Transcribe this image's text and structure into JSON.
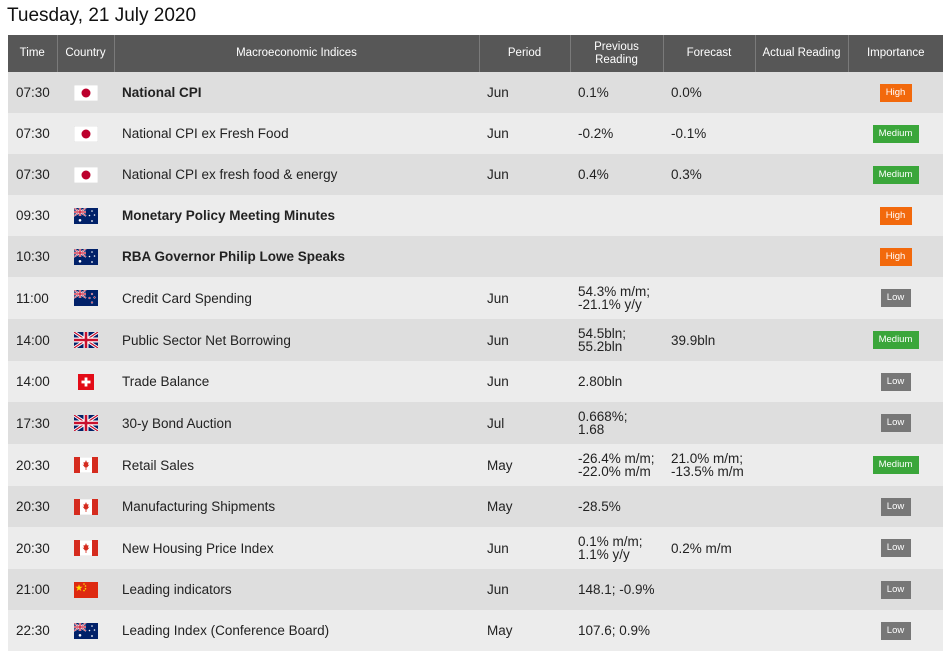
{
  "page": {
    "title": "Tuesday, 21 July 2020"
  },
  "columns": {
    "time": "Time",
    "country": "Country",
    "indices": "Macroeconomic Indices",
    "period": "Period",
    "previous": "Previous Reading",
    "forecast": "Forecast",
    "actual": "Actual Reading",
    "importance": "Importance"
  },
  "rows": [
    {
      "time": "07:30",
      "flag": "japan-flag-icon",
      "indicator": "National CPI",
      "bold": true,
      "period": "Jun",
      "previous": [
        "0.1%"
      ],
      "forecast": [
        "0.0%"
      ],
      "actual": "",
      "importance": "High"
    },
    {
      "time": "07:30",
      "flag": "japan-flag-icon",
      "indicator": "National CPI ex Fresh Food",
      "bold": false,
      "period": "Jun",
      "previous": [
        "-0.2%"
      ],
      "forecast": [
        "-0.1%"
      ],
      "actual": "",
      "importance": "Medium"
    },
    {
      "time": "07:30",
      "flag": "japan-flag-icon",
      "indicator": "National CPI ex fresh food & energy",
      "bold": false,
      "period": "Jun",
      "previous": [
        "0.4%"
      ],
      "forecast": [
        "0.3%"
      ],
      "actual": "",
      "importance": "Medium"
    },
    {
      "time": "09:30",
      "flag": "australia-flag-icon",
      "indicator": "Monetary Policy Meeting Minutes",
      "bold": true,
      "period": "",
      "previous": [],
      "forecast": [],
      "actual": "",
      "importance": "High"
    },
    {
      "time": "10:30",
      "flag": "australia-flag-icon",
      "indicator": "RBA Governor Philip Lowe Speaks",
      "bold": true,
      "period": "",
      "previous": [],
      "forecast": [],
      "actual": "",
      "importance": "High"
    },
    {
      "time": "11:00",
      "flag": "new-zealand-flag-icon",
      "indicator": "Credit Card Spending",
      "bold": false,
      "period": "Jun",
      "previous": [
        "54.3% m/m;",
        "-21.1% y/y"
      ],
      "forecast": [],
      "actual": "",
      "importance": "Low"
    },
    {
      "time": "14:00",
      "flag": "uk-flag-icon",
      "indicator": "Public Sector Net Borrowing",
      "bold": false,
      "period": "Jun",
      "previous": [
        "54.5bln;",
        "55.2bln"
      ],
      "forecast": [
        "39.9bln"
      ],
      "actual": "",
      "importance": "Medium"
    },
    {
      "time": "14:00",
      "flag": "switzerland-flag-icon",
      "indicator": "Trade Balance",
      "bold": false,
      "period": "Jun",
      "previous": [
        "2.80bln"
      ],
      "forecast": [],
      "actual": "",
      "importance": "Low"
    },
    {
      "time": "17:30",
      "flag": "uk-flag-icon",
      "indicator": "30-y Bond Auction",
      "bold": false,
      "period": "Jul",
      "previous": [
        "0.668%;",
        "1.68"
      ],
      "forecast": [],
      "actual": "",
      "importance": "Low"
    },
    {
      "time": "20:30",
      "flag": "canada-flag-icon",
      "indicator": "Retail Sales",
      "bold": false,
      "period": "May",
      "previous": [
        "-26.4% m/m;",
        "-22.0% m/m"
      ],
      "forecast": [
        "21.0% m/m;",
        "-13.5% m/m"
      ],
      "actual": "",
      "importance": "Medium"
    },
    {
      "time": "20:30",
      "flag": "canada-flag-icon",
      "indicator": "Manufacturing Shipments",
      "bold": false,
      "period": "May",
      "previous": [
        "-28.5%"
      ],
      "forecast": [],
      "actual": "",
      "importance": "Low"
    },
    {
      "time": "20:30",
      "flag": "canada-flag-icon",
      "indicator": "New Housing Price Index",
      "bold": false,
      "period": "Jun",
      "previous": [
        "0.1% m/m;",
        "1.1% y/y"
      ],
      "forecast": [
        "0.2% m/m"
      ],
      "actual": "",
      "importance": "Low"
    },
    {
      "time": "21:00",
      "flag": "china-flag-icon",
      "indicator": "Leading indicators",
      "bold": false,
      "period": "Jun",
      "previous": [
        "148.1; -0.9%"
      ],
      "forecast": [],
      "actual": "",
      "importance": "Low"
    },
    {
      "time": "22:30",
      "flag": "australia-flag-icon",
      "indicator": "Leading Index (Conference Board)",
      "bold": false,
      "period": "May",
      "previous": [
        "107.6; 0.9%"
      ],
      "forecast": [],
      "actual": "",
      "importance": "Low"
    }
  ]
}
